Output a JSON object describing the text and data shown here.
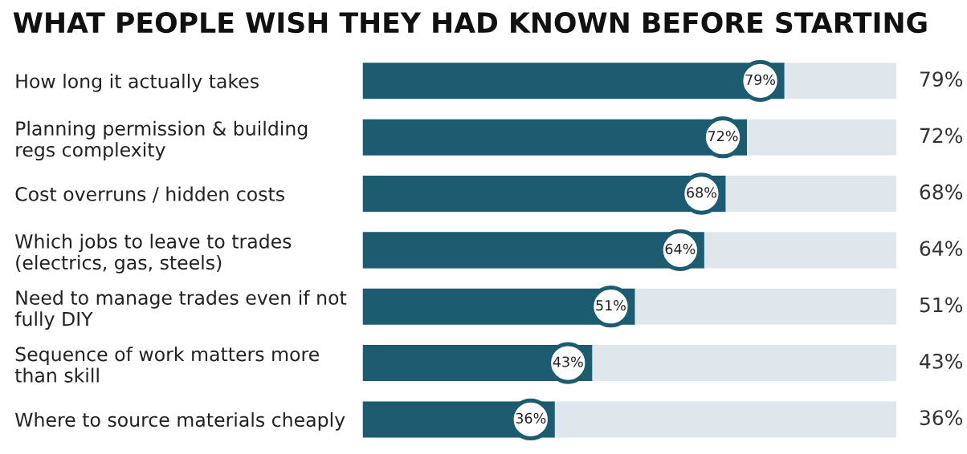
{
  "chart_data": {
    "type": "bar",
    "orientation": "horizontal",
    "title": "WHAT PEOPLE WISH THEY HAD KNOWN BEFORE STARTING",
    "categories": [
      "How long it actually takes",
      "Planning permission & building\nregs complexity",
      "Cost overruns / hidden costs",
      "Which jobs to leave to trades\n(electrics, gas, steels)",
      "Need to manage trades even if not\nfully DIY",
      "Sequence of work matters more\nthan skill",
      "Where to source materials cheaply"
    ],
    "series": [
      {
        "color": "#1d5b70",
        "values": [
          79,
          72,
          68,
          64,
          51,
          43,
          36
        ],
        "value_labels": [
          "79%",
          "72%",
          "68%",
          "64%",
          "51%",
          "43%",
          "36%"
        ]
      }
    ],
    "xlim": [
      0,
      100
    ],
    "tick_labels": "y"
  }
}
